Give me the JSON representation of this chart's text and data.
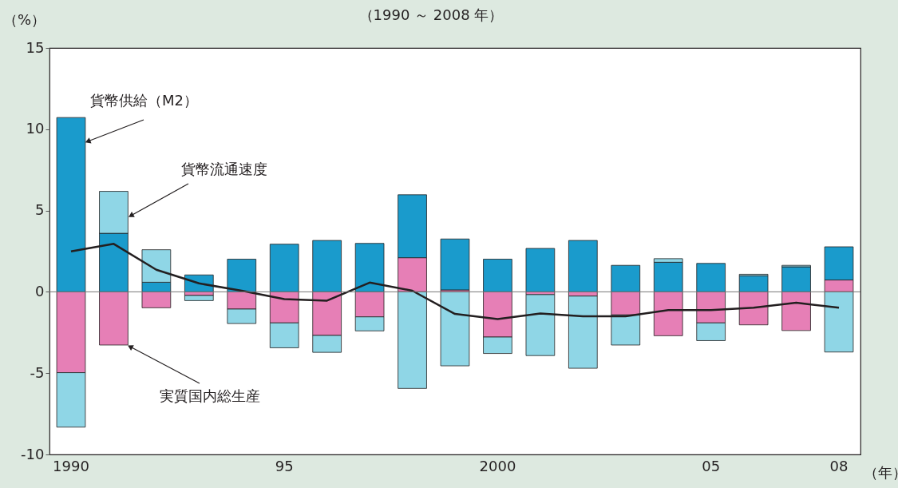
{
  "chart_data": {
    "type": "bar",
    "stacked": true,
    "title": "（1990 ～ 2008 年）",
    "ylabel": "（%）",
    "xlabel": "（年）",
    "categories": [
      "1990",
      null,
      null,
      null,
      null,
      "95",
      null,
      null,
      null,
      null,
      "2000",
      null,
      null,
      null,
      null,
      "05",
      null,
      null,
      "08"
    ],
    "ylim": [
      -10,
      15
    ],
    "yticks": [
      -10,
      -5,
      0,
      5,
      10,
      15
    ],
    "grid": false,
    "ref_lines": [
      {
        "axis": "y",
        "value": 0,
        "color": "#777777"
      }
    ],
    "series": [
      {
        "name": "実質国内総生産",
        "type": "bar",
        "color": "#e67fb6",
        "values": [
          -4.97,
          -3.27,
          -0.98,
          -0.22,
          -1.06,
          -1.91,
          -2.68,
          -1.54,
          2.1,
          0.12,
          -2.78,
          -0.17,
          -0.26,
          -1.42,
          -2.7,
          -1.91,
          -2.03,
          -2.38,
          0.73
        ]
      },
      {
        "name": "貨幣供給（M2）",
        "type": "bar",
        "color": "#1a9bcc",
        "values": [
          10.72,
          3.6,
          0.59,
          1.04,
          2.01,
          2.93,
          3.16,
          2.98,
          3.87,
          3.13,
          2.01,
          2.67,
          3.16,
          1.63,
          1.82,
          1.75,
          0.99,
          1.54,
          2.04
        ]
      },
      {
        "name": "貨幣流通速度",
        "type": "bar",
        "color": "#8fd6e6",
        "values": [
          -3.35,
          2.58,
          2.0,
          -0.32,
          -0.89,
          -1.53,
          -1.04,
          -0.86,
          -5.94,
          -4.55,
          -1.01,
          -3.75,
          -4.44,
          -1.85,
          0.22,
          -1.09,
          0.09,
          0.09,
          -3.7
        ]
      },
      {
        "type": "line",
        "color": "#231f20",
        "values": [
          2.49,
          2.95,
          1.36,
          0.52,
          0.07,
          -0.45,
          -0.54,
          0.57,
          0.07,
          -1.36,
          -1.68,
          -1.33,
          -1.5,
          -1.5,
          -1.12,
          -1.12,
          -0.98,
          -0.67,
          -0.98
        ]
      }
    ]
  }
}
